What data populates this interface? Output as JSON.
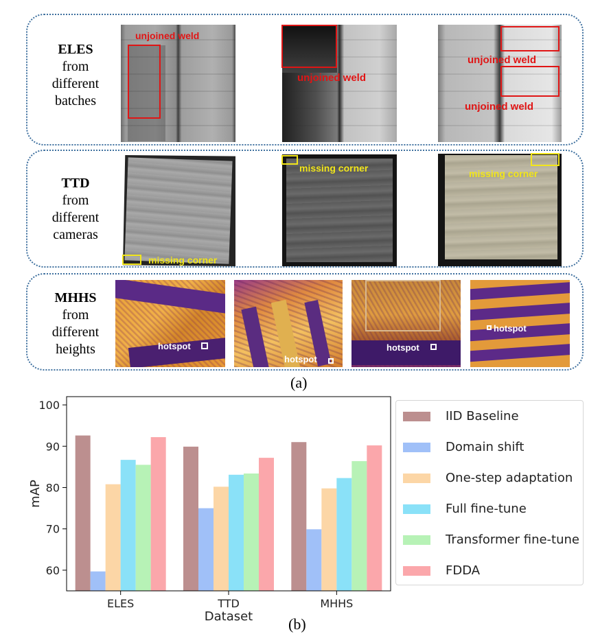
{
  "figure_a": {
    "rows": [
      {
        "title": "ELES",
        "lines": [
          "from",
          "different",
          "batches"
        ]
      },
      {
        "title": "TTD",
        "lines": [
          "from",
          "different",
          "cameras"
        ]
      },
      {
        "title": "MHHS",
        "lines": [
          "from",
          "different",
          "heights"
        ]
      }
    ],
    "defect_labels": {
      "unjoined_weld": "unjoined weld",
      "missing_corner": "missing corner",
      "hotspot": "hotspot"
    },
    "colors": {
      "red_box": "#e01515",
      "yellow_box": "#f2e61a",
      "white_box": "#ffffff",
      "panel_border": "#3d6f9e"
    },
    "caption": "(a)"
  },
  "chart_data": {
    "type": "bar",
    "categories": [
      "ELES",
      "TTD",
      "MHHS"
    ],
    "xlabel": "Dataset",
    "ylabel": "mAP",
    "ylim": [
      55,
      102
    ],
    "yticks": [
      60,
      70,
      80,
      90,
      100
    ],
    "grid": false,
    "legend_position": "right",
    "series": [
      {
        "name": "IID Baseline",
        "color": "#bc8f8f",
        "values": [
          92.6,
          89.9,
          91.0
        ]
      },
      {
        "name": "Domain shift",
        "color": "#a0c0f8",
        "values": [
          59.7,
          75.0,
          69.9
        ]
      },
      {
        "name": "One-step adaptation",
        "color": "#fcd6a6",
        "values": [
          80.8,
          80.2,
          79.8
        ]
      },
      {
        "name": "Full fine-tune",
        "color": "#8ae1f8",
        "values": [
          86.7,
          83.1,
          82.3
        ]
      },
      {
        "name": "Transformer fine-tune",
        "color": "#b7f2b6",
        "values": [
          85.5,
          83.4,
          86.4
        ]
      },
      {
        "name": "FDDA",
        "color": "#fba7ab",
        "values": [
          92.2,
          87.2,
          90.2
        ]
      }
    ]
  },
  "caption_b": "(b)"
}
